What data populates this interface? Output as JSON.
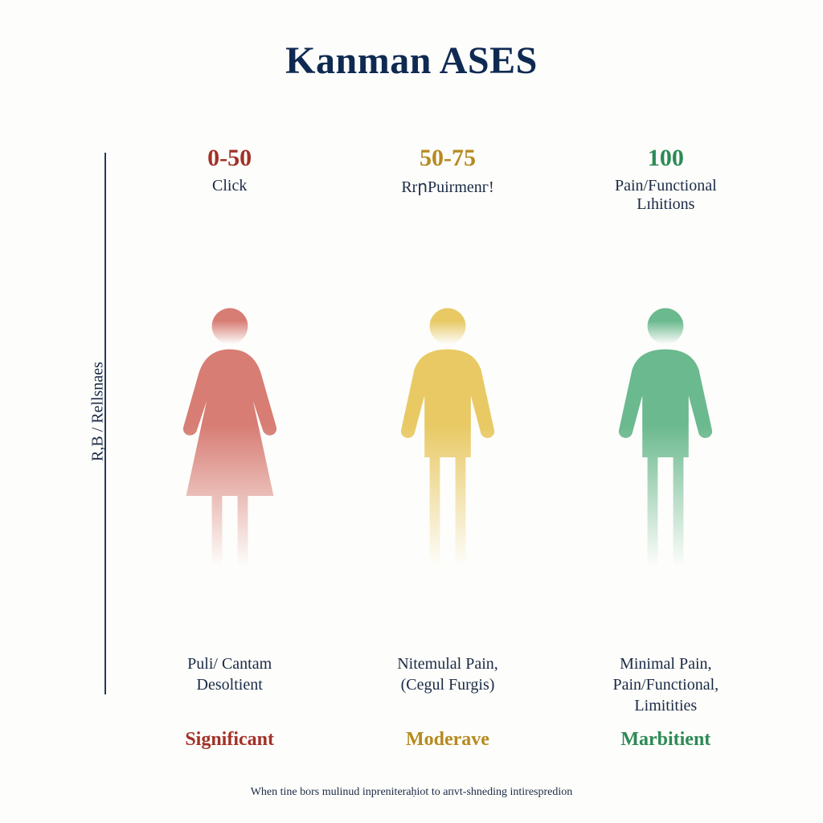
{
  "title": {
    "text": "Kanman ASES",
    "color": "#0f2a52",
    "fontsize": 48
  },
  "axis": {
    "label": "R,B / Rellsnaes",
    "label_color": "#1a2a44",
    "line_color": "#233a5e"
  },
  "text_color": "#1a2a44",
  "background_color": "#fdfdfb",
  "columns": [
    {
      "range": "0-50",
      "range_color": "#a23127",
      "sublabel": "Click",
      "figure_shape": "female",
      "figure_color": "#d77d74",
      "figure_fade_to": "#fdfdfb",
      "description": "Puli/ Cantam\nDesoltient",
      "severity": "Significant",
      "severity_color": "#a23127"
    },
    {
      "range": "50-75",
      "range_color": "#b68a1f",
      "sublabel": "RrրPuirmenг!",
      "figure_shape": "male",
      "figure_color": "#e8c964",
      "figure_fade_to": "#fdfdfb",
      "description": "Nitemulal Pain,\n(Cegul Furgis)",
      "severity": "Moderave",
      "severity_color": "#b68a1f"
    },
    {
      "range": "100",
      "range_color": "#2d8a55",
      "sublabel": "Pain/Functional\nLɪhitions",
      "figure_shape": "male",
      "figure_color": "#6bb98e",
      "figure_fade_to": "#fdfdfb",
      "description": "Minimal Pain,\nPain/Functional,\nLimitities",
      "severity": "Marbitient",
      "severity_color": "#2d8a55"
    }
  ],
  "footnote": "When tine bors mulinud inpreniteraḥiot to aпvt-shneding intirespredion",
  "chart_meta": {
    "type": "infographic",
    "categories": [
      "0-50",
      "50-75",
      "100"
    ],
    "category_colors": [
      "#a23127",
      "#b68a1f",
      "#2d8a55"
    ],
    "aspect_ratio": "1:1",
    "range_fontsize": 30,
    "sub_fontsize": 20,
    "desc_fontsize": 20,
    "severity_fontsize": 24,
    "footnote_fontsize": 14,
    "figure_gradient_bands": 6
  }
}
